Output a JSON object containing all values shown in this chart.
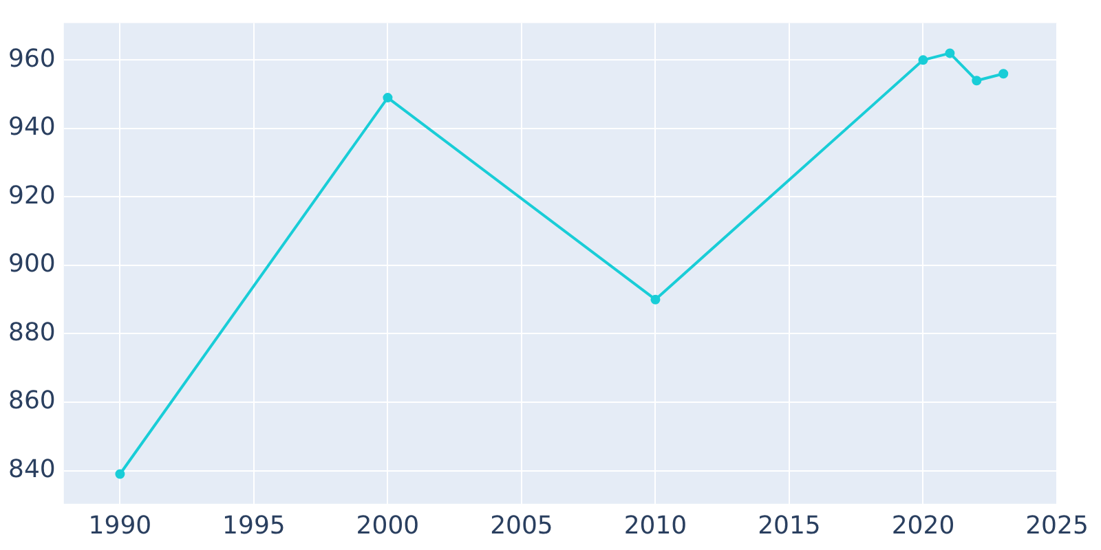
{
  "chart_data": {
    "type": "line",
    "x": [
      1990,
      2000,
      2010,
      2020,
      2021,
      2022,
      2023
    ],
    "series": [
      {
        "color": "#19cdd7",
        "values": [
          839,
          949,
          890,
          960,
          962,
          954,
          956
        ]
      }
    ],
    "xlim": [
      1987.9,
      2025
    ],
    "xticks": [
      1990,
      1995,
      2000,
      2005,
      2010,
      2015,
      2020,
      2025
    ],
    "ylim": [
      830.3,
      970.8
    ],
    "yticks": [
      840,
      860,
      880,
      900,
      920,
      940,
      960
    ],
    "grid": true,
    "legend": false,
    "marker": "circle",
    "line_style": "solid"
  }
}
